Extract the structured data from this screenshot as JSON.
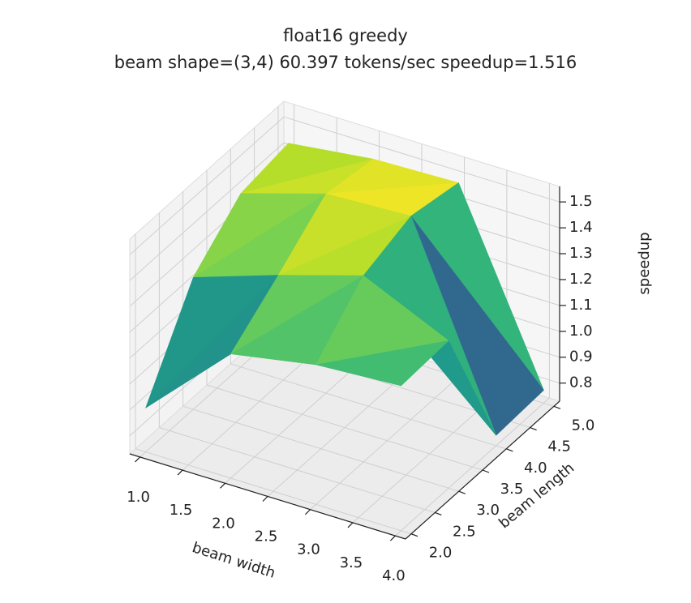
{
  "chart_data": {
    "type": "surface3d",
    "title": "float16 greedy",
    "subtitle": "beam shape=(3,4) 60.397 tokens/sec speedup=1.516",
    "x_label": "beam width",
    "y_label": "beam length",
    "z_label": "speedup",
    "x": [
      1,
      2,
      3,
      4
    ],
    "y": [
      2,
      3,
      4,
      5
    ],
    "z": [
      [
        0.9,
        1.21,
        1.27,
        1.29
      ],
      [
        1.24,
        1.35,
        1.45,
        1.3
      ],
      [
        1.4,
        1.5,
        1.516,
        0.77
      ],
      [
        1.43,
        1.47,
        1.48,
        0.78
      ]
    ],
    "xlim": [
      0.88,
      4.12
    ],
    "ylim": [
      1.88,
      5.12
    ],
    "zlim": [
      0.73,
      1.56
    ],
    "xticks": [
      {
        "value": 1,
        "label": "1.0"
      },
      1.5,
      {
        "value": 2,
        "label": "2.0"
      },
      2.5,
      {
        "value": 3,
        "label": "3.0"
      },
      3.5,
      {
        "value": 4,
        "label": "4.0"
      }
    ],
    "yticks": [
      {
        "value": 2,
        "label": "2.0"
      },
      2.5,
      {
        "value": 3,
        "label": "3.0"
      },
      3.5,
      {
        "value": 4,
        "label": "4.0"
      },
      4.5,
      {
        "value": 5,
        "label": "5.0"
      }
    ],
    "zticks": [
      0.8,
      0.9,
      {
        "value": 1,
        "label": "1.0"
      },
      1.1,
      1.2,
      1.3,
      1.4,
      1.5
    ],
    "colormap": "viridis",
    "grid": true
  }
}
